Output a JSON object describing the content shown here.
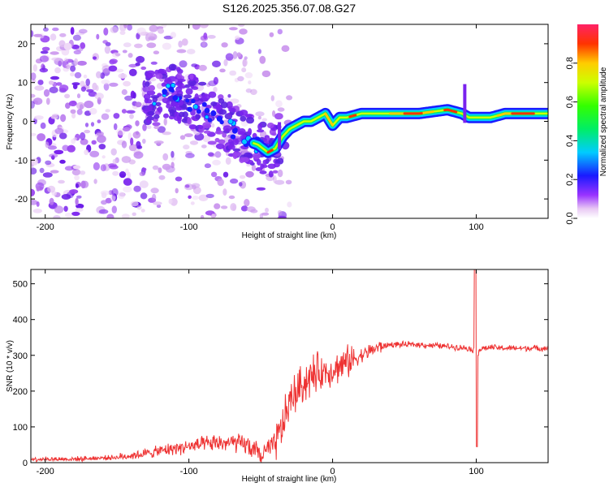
{
  "title": "S126.2025.356.07.08.G27",
  "chart_data": [
    {
      "type": "heatmap",
      "name": "spectrogram",
      "xlabel": "Height of straight line (km)",
      "ylabel": "Frequency (Hz)",
      "xlim": [
        -210,
        150
      ],
      "ylim": [
        -25,
        25
      ],
      "xticks": [
        -200,
        -100,
        0,
        100
      ],
      "yticks": [
        -20,
        -10,
        0,
        10,
        20
      ],
      "colorbar": {
        "label": "Normalized spectral amplitude",
        "range": [
          0,
          1
        ],
        "ticks": [
          0.0,
          0.2,
          0.4,
          0.6,
          0.8
        ]
      },
      "ridge": {
        "x": [
          -125,
          -110,
          -100,
          -90,
          -80,
          -70,
          -60,
          -52,
          -45,
          -40,
          -35,
          -30,
          -25,
          -20,
          -15,
          -10,
          -5,
          0,
          5,
          10,
          20,
          40,
          60,
          80,
          90,
          95,
          100,
          110,
          120,
          140,
          150
        ],
        "y": [
          6,
          8,
          5,
          3,
          0,
          -2,
          -5,
          -6,
          -8,
          -7,
          -4,
          -2,
          -1,
          0,
          0,
          1,
          2,
          -1,
          1,
          1,
          2,
          2,
          2,
          3,
          2,
          1,
          1,
          1,
          2,
          2,
          2
        ]
      }
    },
    {
      "type": "line",
      "name": "snr",
      "xlabel": "Height of straight line (km)",
      "ylabel": "SNR (10 * v/v)",
      "xlim": [
        -210,
        150
      ],
      "ylim": [
        0,
        540
      ],
      "xticks": [
        -200,
        -100,
        0,
        100
      ],
      "yticks": [
        0,
        100,
        200,
        300,
        400,
        500
      ],
      "color": "#ee3333",
      "series": [
        {
          "name": "SNR",
          "x": [
            -210,
            -180,
            -150,
            -130,
            -110,
            -100,
            -90,
            -80,
            -70,
            -60,
            -50,
            -40,
            -35,
            -30,
            -25,
            -20,
            -15,
            -10,
            -5,
            0,
            10,
            20,
            30,
            40,
            60,
            80,
            95,
            100,
            105,
            110,
            120,
            150
          ],
          "y": [
            10,
            10,
            15,
            25,
            40,
            45,
            50,
            55,
            55,
            50,
            20,
            50,
            100,
            170,
            200,
            225,
            240,
            250,
            255,
            260,
            280,
            300,
            320,
            330,
            330,
            325,
            320,
            310,
            320,
            322,
            320,
            320
          ]
        }
      ]
    }
  ]
}
